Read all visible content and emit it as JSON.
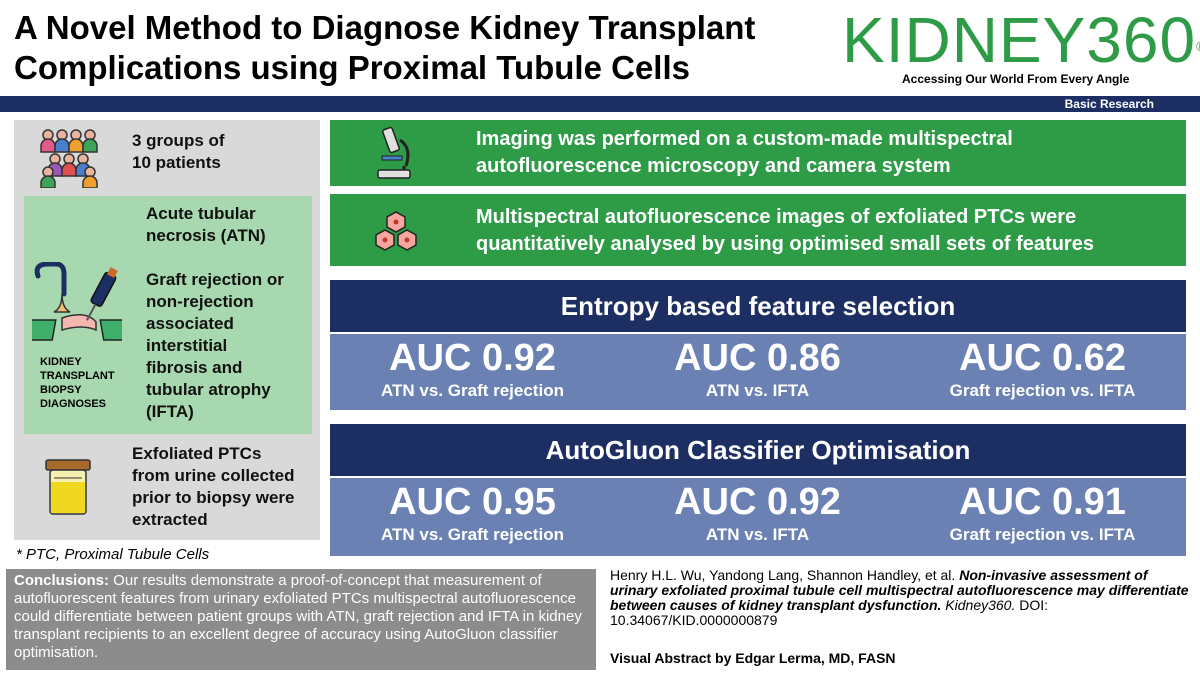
{
  "header": {
    "title_line1": "A Novel Method to Diagnose Kidney Transplant",
    "title_line2": "Complications using Proximal Tubule Cells",
    "logo_text": "KIDNEY360",
    "logo_mark": "®",
    "logo_tagline": "Accessing Our World From Every Angle",
    "category": "Basic Research"
  },
  "colors": {
    "navy": "#1d2e63",
    "green": "#2e9b47",
    "light_green": "#a8d8b0",
    "blue_gray": "#6b81b4",
    "gray": "#d9d9d9"
  },
  "left": {
    "groups": "3 groups of 10 patients",
    "groups_line1": "3 groups of",
    "groups_line2": "10 patients",
    "atn_line1": "Acute tubular",
    "atn_line2": "necrosis (ATN)",
    "ifta_lines": [
      "Graft rejection or",
      "non-rejection",
      "associated",
      "interstitial",
      "fibrosis and",
      "tubular atrophy",
      "(IFTA)"
    ],
    "biopsy_lines": [
      "KIDNEY",
      "TRANSPLANT",
      "BIOPSY",
      "DIAGNOSES"
    ],
    "ptc_lines": [
      "Exfoliated PTCs",
      "from urine collected",
      "prior to biopsy were",
      "extracted"
    ],
    "footnote": "* PTC, Proximal Tubule Cells",
    "icons": [
      "people-group-icon",
      "biopsy-needle-icon",
      "urine-cup-icon"
    ]
  },
  "right": {
    "imaging_line1": "Imaging was performed on a custom-made multispectral",
    "imaging_line2": "autofluorescence microscopy and camera system",
    "analysis_line1": "Multispectral autofluorescence images of exfoliated PTCs were",
    "analysis_line2": "quantitatively analysed by using optimised small sets of features",
    "icons": [
      "microscope-icon",
      "cells-icon"
    ],
    "entropy": {
      "heading": "Entropy based feature selection",
      "results": [
        {
          "auc": "AUC 0.92",
          "comparison": "ATN vs. Graft rejection"
        },
        {
          "auc": "AUC 0.86",
          "comparison": "ATN vs. IFTA"
        },
        {
          "auc": "AUC 0.62",
          "comparison": "Graft rejection vs. IFTA"
        }
      ]
    },
    "autogluon": {
      "heading": "AutoGluon Classifier Optimisation",
      "results": [
        {
          "auc": "AUC 0.95",
          "comparison": "ATN vs. Graft rejection"
        },
        {
          "auc": "AUC 0.92",
          "comparison": "ATN vs. IFTA"
        },
        {
          "auc": "AUC 0.91",
          "comparison": "Graft rejection vs. IFTA"
        }
      ]
    }
  },
  "footer": {
    "conclusion_label": "Conclusions:",
    "conclusion_text": " Our results demonstrate a proof-of-concept that measurement of autofluorescent features from urinary exfoliated PTCs multispectral autofluorescence could differentiate between patient groups with ATN, graft rejection and IFTA in kidney transplant recipients to an excellent degree of accuracy using AutoGluon classifier optimisation.",
    "citation_authors": "Henry H.L. Wu, Yandong Lang, Shannon Handley, et al. ",
    "citation_title": "Non-invasive assessment of urinary exfoliated proximal tubule cell multispectral autofluorescence may differentiate between causes of kidney transplant dysfunction.",
    "citation_journal": " Kidney360.",
    "citation_doi": " DOI: 10.34067/KID.0000000879",
    "visual_abstract_by": "Visual Abstract by Edgar Lerma, MD, FASN"
  }
}
